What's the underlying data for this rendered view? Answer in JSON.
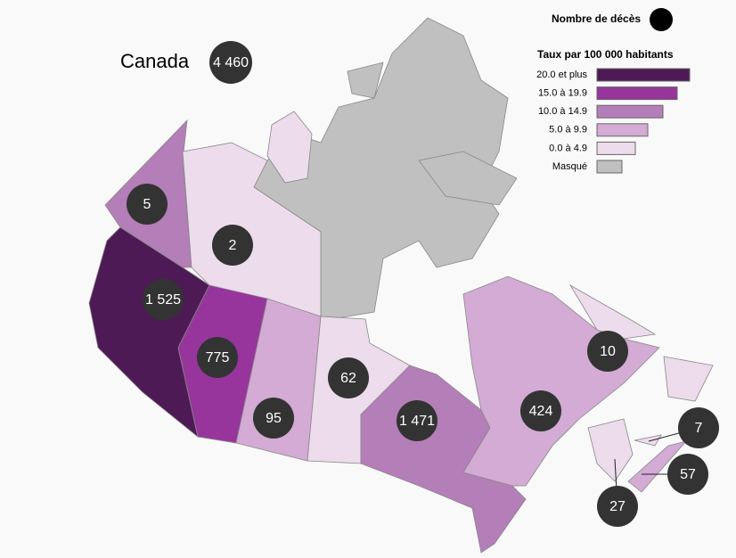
{
  "title": "Canada",
  "total": "4 460",
  "legend": {
    "size_title": "Nombre de décès",
    "rate_title": "Taux par 100 000 habitants",
    "items": [
      {
        "label": "20.0 et plus",
        "color": "#4e1a55"
      },
      {
        "label": "15.0 à 19.9",
        "color": "#97359c"
      },
      {
        "label": "10.0 à 14.9",
        "color": "#b47eb8"
      },
      {
        "label": "5.0 à 9.9",
        "color": "#d3abd4"
      },
      {
        "label": "0.0 à 4.9",
        "color": "#ecdcec"
      },
      {
        "label": "Masqué",
        "color": "#c0c0c0"
      }
    ]
  },
  "regions": [
    {
      "label": "5",
      "color": "#b47eb8"
    },
    {
      "label": "2",
      "color": "#ecdcec"
    },
    {
      "label": "1 525",
      "color": "#4e1a55"
    },
    {
      "label": "775",
      "color": "#97359c"
    },
    {
      "label": "95",
      "color": "#d3abd4"
    },
    {
      "label": "62",
      "color": "#ecdcec"
    },
    {
      "label": "1 471",
      "color": "#b47eb8"
    },
    {
      "label": "424",
      "color": "#d3abd4"
    },
    {
      "label": "10",
      "color": "#ecdcec"
    },
    {
      "label": "7",
      "color": "#ecdcec"
    },
    {
      "label": "57",
      "color": "#d3abd4"
    },
    {
      "label": "27",
      "color": "#ecdcec"
    }
  ]
}
